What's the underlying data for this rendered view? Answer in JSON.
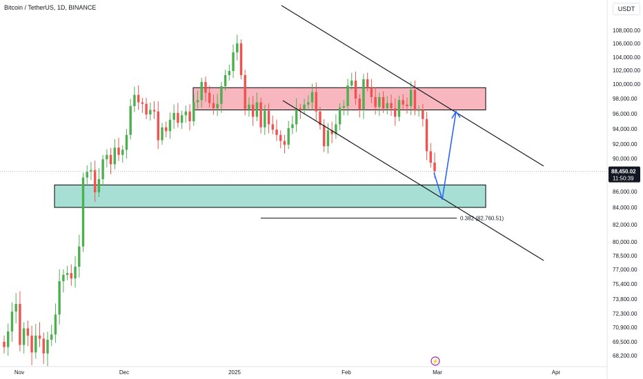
{
  "header": {
    "symbol": "Bitcoin / TetherUS, 1D, BINANCE",
    "currency": "USDT"
  },
  "price_axis": [
    "108,000.00",
    "106,000.00",
    "104,000.00",
    "102,000.00",
    "100,000.00",
    "98,000.00",
    "96,000.00",
    "94,000.00",
    "92,000.00",
    "90,000.00",
    "86,000.00",
    "84,000.00",
    "82,000.00",
    "80,000.00",
    "78,500.00",
    "77,000.00",
    "75,400.00",
    "73,800.00",
    "72,300.00",
    "70,900.00",
    "69,500.00",
    "68,200.00"
  ],
  "time_axis": [
    "Nov",
    "Dec",
    "2025",
    "Feb",
    "Mar",
    "Apr"
  ],
  "last_price": {
    "price": "88,450.02",
    "countdown": "11:50:39"
  },
  "fib_label": "0.382 (82,760.51)",
  "colors": {
    "up": "#26a69a",
    "up_body": "#4caf50",
    "down": "#ef5350",
    "resistance_zone": "#f7a9b3",
    "support_zone": "#9fdcd0",
    "arrow": "#2962ff"
  },
  "chart_data": {
    "type": "candlestick",
    "ylim": [
      67500,
      110000
    ],
    "y_ticks": [
      108000,
      106000,
      104000,
      102000,
      100000,
      98000,
      96000,
      94000,
      92000,
      90000,
      86000,
      84000,
      82000,
      80000,
      78500,
      77000,
      75400,
      73800,
      72300,
      70900,
      69500,
      68200
    ],
    "x_labels": [
      "Nov",
      "Dec",
      "2025",
      "Feb",
      "Mar",
      "Apr"
    ],
    "resistance_zone": [
      96500,
      99500
    ],
    "support_zone": [
      84000,
      86800
    ],
    "fib_level": {
      "ratio": 0.382,
      "price": 82760.51
    },
    "last_price": 88450.02,
    "projection": {
      "from_price": 88300,
      "low_price": 85000,
      "target_price": 96300
    },
    "closes": [
      69000,
      70500,
      72500,
      73300,
      69200,
      70800,
      70100,
      68500,
      70100,
      69800,
      68400,
      69700,
      70200,
      72200,
      75700,
      76400,
      76600,
      76000,
      77300,
      79500,
      87700,
      88400,
      88600,
      85900,
      87500,
      89900,
      90500,
      89300,
      91500,
      90500,
      91200,
      93200,
      97000,
      98500,
      97500,
      97300,
      95900,
      96500,
      96300,
      92500,
      94200,
      93700,
      95200,
      96100,
      94800,
      95800,
      96300,
      95000,
      97500,
      97800,
      100300,
      98800,
      97400,
      96700,
      97300,
      99700,
      101300,
      101900,
      104700,
      106000,
      101300,
      96600,
      97200,
      95600,
      97500,
      94200,
      96400,
      94600,
      93900,
      93200,
      92400,
      91900,
      94100,
      94600,
      96700,
      96500,
      97200,
      97500,
      98900,
      96300,
      94500,
      91700,
      93800,
      93300,
      94600,
      96800,
      97000,
      99800,
      100500,
      98000,
      96500,
      100700,
      99600,
      98200,
      96900,
      98200,
      96700,
      97400,
      96700,
      95600,
      97800,
      97200,
      97000,
      99200,
      96400,
      96500,
      95300,
      91000,
      89500,
      88450
    ],
    "opens": [
      69500,
      69000,
      70500,
      72500,
      73300,
      69200,
      70800,
      70100,
      68500,
      70100,
      69800,
      68400,
      69700,
      70200,
      72200,
      75700,
      76400,
      76600,
      76000,
      77300,
      79500,
      87700,
      88400,
      88600,
      85900,
      87500,
      89900,
      90500,
      89300,
      91500,
      90500,
      91200,
      93200,
      97000,
      98500,
      97500,
      97300,
      95900,
      96500,
      96300,
      92500,
      94200,
      93700,
      95200,
      96100,
      94800,
      95800,
      96300,
      95000,
      97500,
      97800,
      100300,
      98800,
      97400,
      96700,
      97300,
      99700,
      101300,
      101900,
      104700,
      106000,
      101300,
      96600,
      97200,
      95600,
      97500,
      94200,
      96400,
      94600,
      93900,
      93200,
      92400,
      91900,
      94100,
      94600,
      96700,
      96500,
      97200,
      97500,
      98900,
      96300,
      94500,
      91700,
      93800,
      93300,
      94600,
      96800,
      97000,
      99800,
      100500,
      98000,
      96500,
      100700,
      99600,
      98200,
      96900,
      98200,
      96700,
      97400,
      96700,
      95600,
      97800,
      97200,
      97000,
      99200,
      96400,
      96500,
      95300,
      91000,
      89500
    ]
  }
}
